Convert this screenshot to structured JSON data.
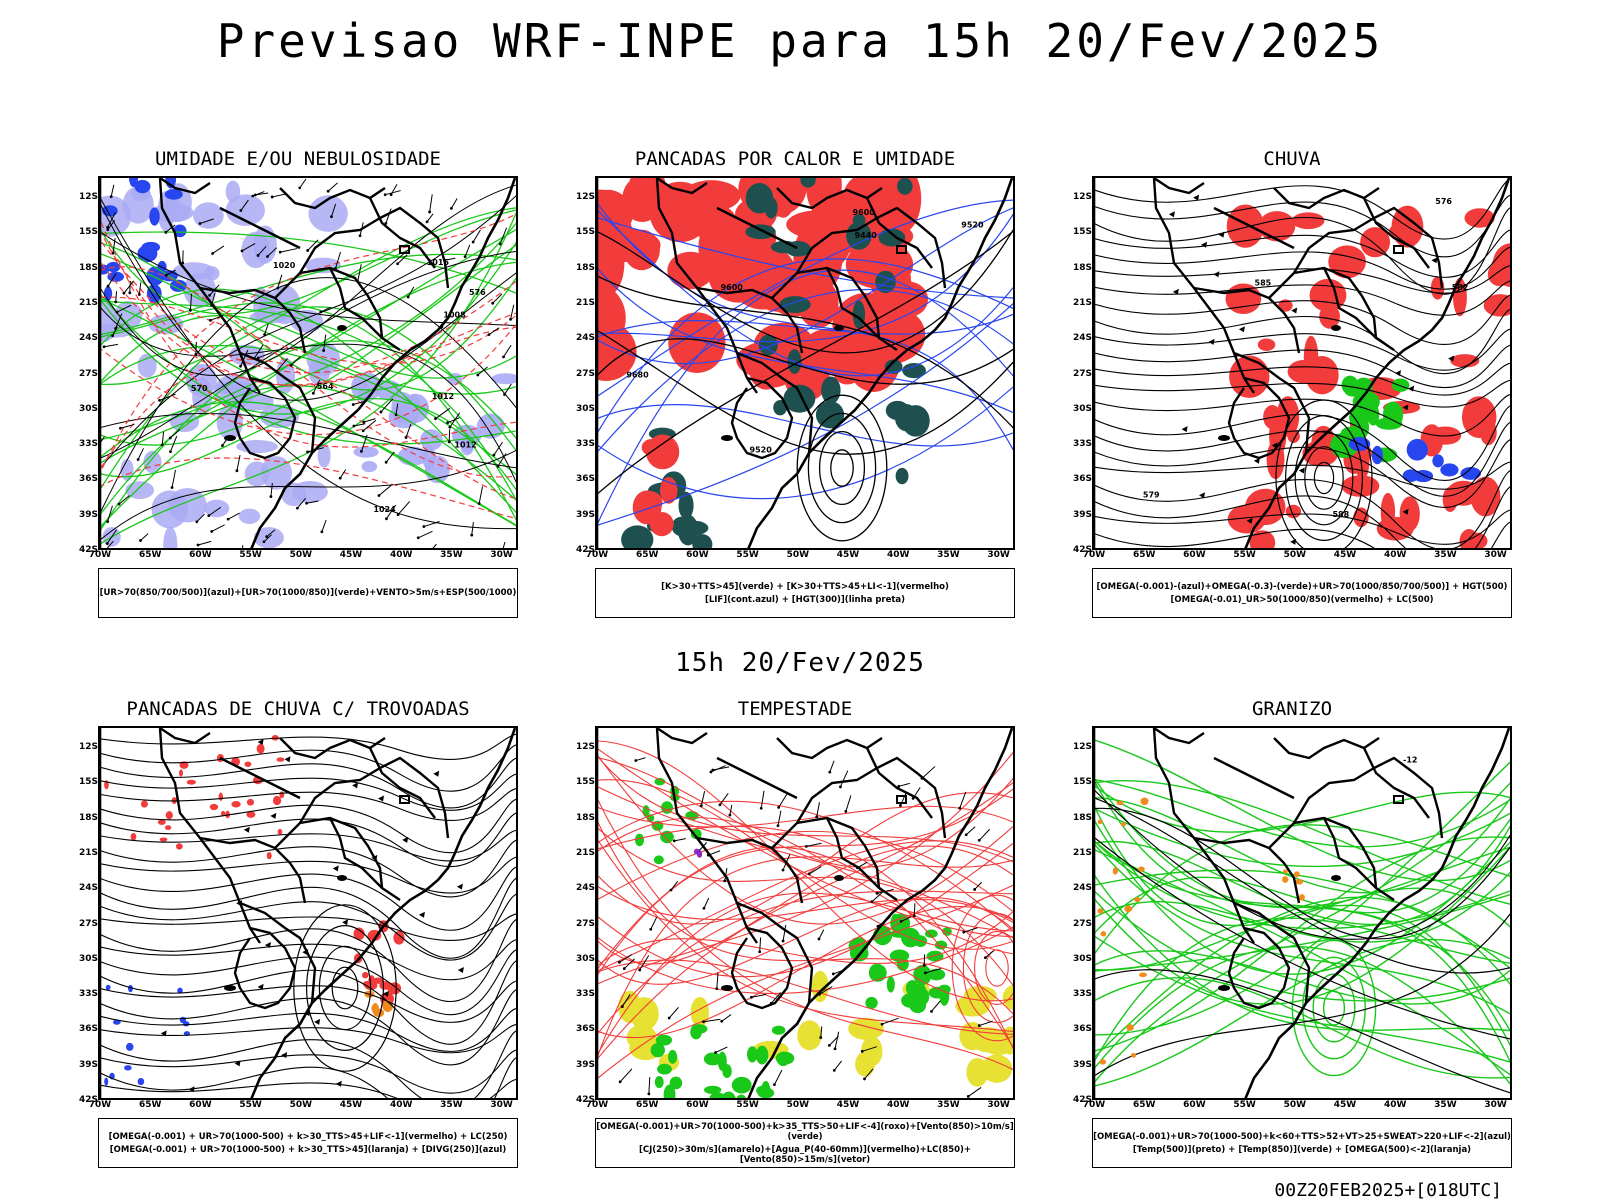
{
  "header": {
    "title": "Previsao WRF-INPE  para 15h 20/Fev/2025",
    "mid_title": "15h 20/Fev/2025",
    "footer": "00Z20FEB2025+[018UTC]"
  },
  "axes": {
    "lat_ticks": [
      "12S",
      "15S",
      "18S",
      "21S",
      "24S",
      "27S",
      "30S",
      "33S",
      "36S",
      "39S",
      "42S"
    ],
    "lon_ticks": [
      "70W",
      "65W",
      "60W",
      "55W",
      "50W",
      "45W",
      "40W",
      "35W",
      "30W"
    ]
  },
  "panels": [
    {
      "title": "UMIDADE E/OU NEBULOSIDADE",
      "legend": [
        "[UR>70(850/700/500)](azul)+[UR>70(1000/850)](verde)+VENTO>5m/s+ESP(500/1000)"
      ],
      "labels": [
        "1012",
        "1012",
        "1016",
        "1008",
        "1020",
        "1024",
        "576",
        "570",
        "564"
      ]
    },
    {
      "title": "PANCADAS POR CALOR E UMIDADE",
      "legend": [
        "[K>30+TTS>45](verde) + [K>30+TTS>45+LI<-1](vermelho)",
        "[LIF](cont.azul) + [HGT(300)](linha preta)"
      ],
      "labels": [
        "9600",
        "9680",
        "9520",
        "9440",
        "9600",
        "9520"
      ]
    },
    {
      "title": "CHUVA",
      "legend": [
        "[OMEGA(-0.001)-(azul)+OMEGA(-0.3)-(verde)+UR>70(1000/850/700/500)] + HGT(500)",
        "[OMEGA(-0.01)_UR>50(1000/850)(vermelho) + LC(500)"
      ],
      "labels": [
        "588",
        "585",
        "582",
        "576",
        "579"
      ]
    },
    {
      "title": "PANCADAS DE CHUVA C/ TROVOADAS",
      "legend": [
        "[OMEGA(-0.001) + UR>70(1000-500) + k>30_TTS>45+LIF<-1](vermelho) + LC(250)",
        "[OMEGA(-0.001) + UR>70(1000-500) + k>30_TTS>45](laranja) + [DIVG(250)](azul)"
      ],
      "labels": []
    },
    {
      "title": "TEMPESTADE",
      "legend": [
        "[OMEGA(-0.001)+UR>70(1000-500)+k>35_TTS>50+LIF<-4](roxo)+[Vento(850)>10m/s](verde)",
        "[CJ(250)>30m/s](amarelo)+[Agua_P(40-60mm)](vermelho)+LC(850)+[Vento(850)>15m/s](vetor)"
      ],
      "labels": []
    },
    {
      "title": "GRANIZO",
      "legend": [
        "[OMEGA(-0.001)+UR>70(1000-500)+k<60+TTS>52+VT>25+SWEAT>220+LIF<-2](azul)",
        "[Temp(500)](preto) + [Temp(850)](verde) + [OMEGA(500)<-2](laranja)"
      ],
      "labels": [
        "-12"
      ]
    }
  ],
  "colors": {
    "red": "#f23c3c",
    "green": "#19c819",
    "blue": "#2846f0",
    "lavender": "#aaaaf5",
    "dark_teal": "#1e5050",
    "yellow": "#e6e132",
    "orange": "#f08c1e",
    "purple": "#8c28c8"
  }
}
